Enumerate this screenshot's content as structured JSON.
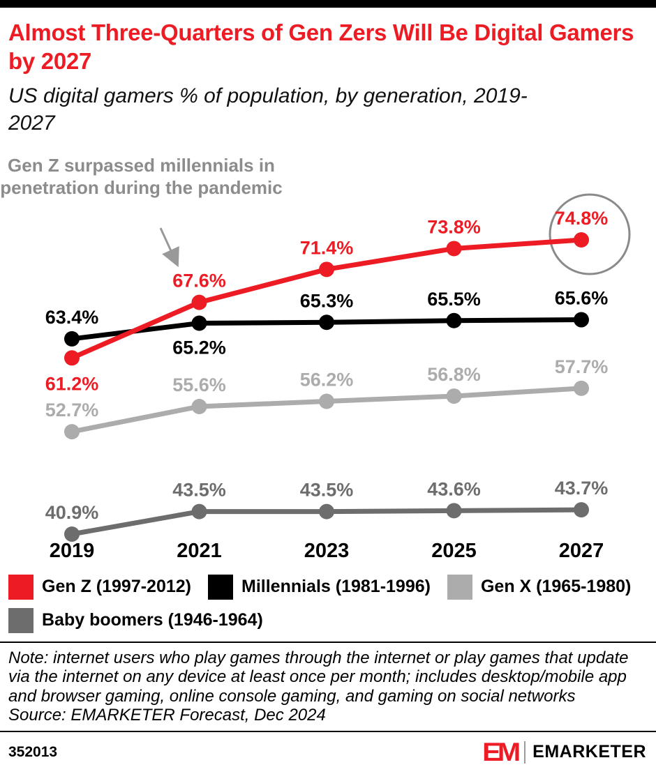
{
  "colors": {
    "accent": "#ED1C24",
    "annotation_gray": "#8c8c8c",
    "highlight_circle_gray": "#8a8a8a",
    "arrow_gray": "#999999"
  },
  "header": {
    "title": "Almost Three-Quarters of Gen Zers Will Be Digital Gamers by 2027",
    "subtitle": "US digital gamers % of population, by generation, 2019-2027"
  },
  "chart_data": {
    "type": "line",
    "title": "US digital gamers % of population, by generation, 2019-2027",
    "x": [
      2019,
      2021,
      2023,
      2025,
      2027
    ],
    "xlabel": "",
    "ylabel": "",
    "ylim": [
      38,
      80
    ],
    "grid": false,
    "legend_position": "bottom",
    "value_suffix": "%",
    "series": [
      {
        "name": "Gen Z (1997-2012)",
        "color": "#ED1C24",
        "values": [
          61.2,
          67.6,
          71.4,
          73.8,
          74.8
        ]
      },
      {
        "name": "Millennials (1981-1996)",
        "color": "#000000",
        "values": [
          63.4,
          65.2,
          65.3,
          65.5,
          65.6
        ]
      },
      {
        "name": "Gen X (1965-1980)",
        "color": "#ACACAC",
        "values": [
          52.7,
          55.6,
          56.2,
          56.8,
          57.7
        ]
      },
      {
        "name": "Baby boomers (1946-1964)",
        "color": "#6D6D6D",
        "values": [
          40.9,
          43.5,
          43.5,
          43.6,
          43.7
        ]
      }
    ],
    "annotation": "Gen Z surpassed millennials in penetration during the pandemic",
    "annotation_color": "#8c8c8c",
    "highlight": {
      "series": "Gen Z (1997-2012)",
      "x": 2027,
      "value": 74.8,
      "circle_color": "#8a8a8a"
    }
  },
  "notes": {
    "note": "Note: internet users who play games through the internet or play games that update via the internet on any device at least once per month; includes desktop/mobile app and browser gaming, online console gaming, and gaming on social networks",
    "source": "Source: EMARKETER Forecast, Dec 2024"
  },
  "footer": {
    "chart_id": "352013",
    "logo_mark": "EM",
    "brand_name": "EMARKETER"
  }
}
